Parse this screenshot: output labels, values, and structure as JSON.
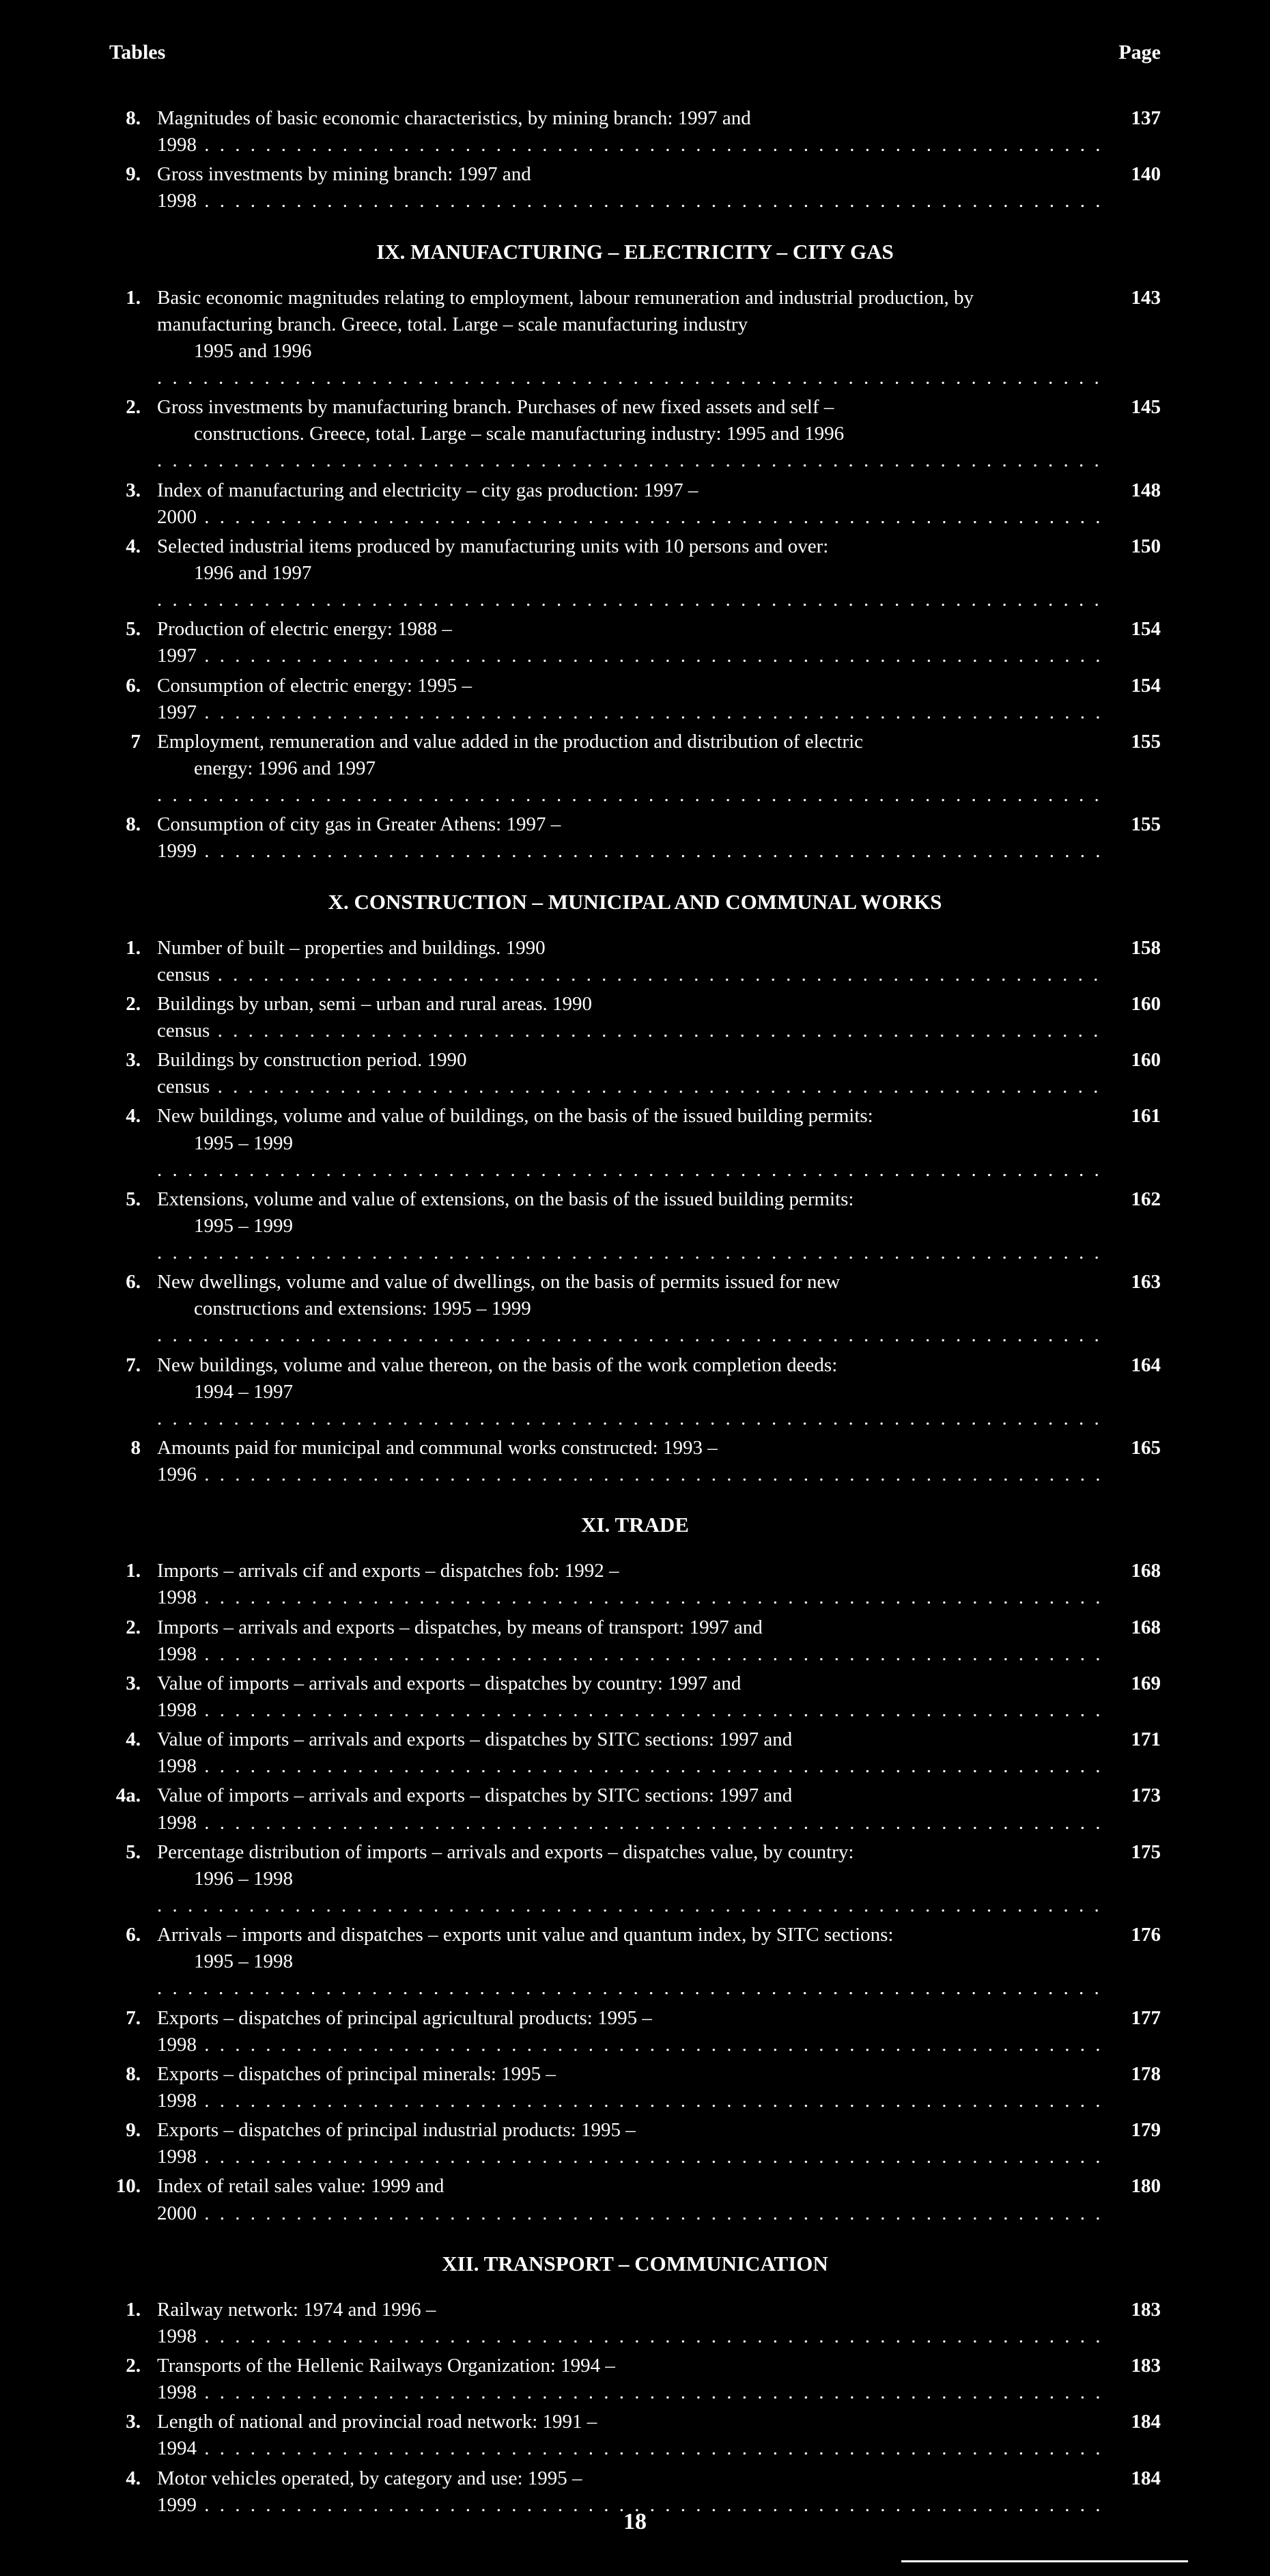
{
  "header": {
    "left": "Tables",
    "right": "Page"
  },
  "top_items": [
    {
      "n": "8.",
      "text": "Magnitudes of basic economic characteristics, by mining branch: 1997 and 1998",
      "page": "137"
    },
    {
      "n": "9.",
      "text": "Gross investments by mining branch: 1997 and 1998",
      "page": "140"
    }
  ],
  "sections": [
    {
      "title": "IX. MANUFACTURING – ELECTRICITY – CITY GAS",
      "items": [
        {
          "n": "1.",
          "text": "Basic economic magnitudes relating to employment, labour remuneration and industrial production, by manufacturing branch. Greece, total. Large – scale manufacturing industry ",
          "cont": "1995 and 1996",
          "page": "143"
        },
        {
          "n": "2.",
          "text": "Gross investments by manufacturing branch. Purchases of new fixed assets and self – ",
          "cont": "constructions. Greece, total. Large – scale manufacturing industry: 1995 and 1996",
          "page": "145"
        },
        {
          "n": "3.",
          "text": "Index of manufacturing and electricity – city gas production: 1997 – 2000",
          "page": "148"
        },
        {
          "n": "4.",
          "text": "Selected industrial items produced by manufacturing units with 10 persons and over: ",
          "cont": "1996 and 1997",
          "page": "150"
        },
        {
          "n": "5.",
          "text": "Production of electric energy: 1988 – 1997",
          "page": "154"
        },
        {
          "n": "6.",
          "text": "Consumption of electric energy: 1995 – 1997",
          "page": "154"
        },
        {
          "n": "7",
          "text": "Employment, remuneration and value added in the production and distribution of electric ",
          "cont": "energy: 1996 and 1997",
          "page": "155"
        },
        {
          "n": "8.",
          "text": "Consumption of city gas in Greater Athens: 1997 – 1999",
          "page": "155"
        }
      ]
    },
    {
      "title": "X. CONSTRUCTION – MUNICIPAL AND COMMUNAL WORKS",
      "items": [
        {
          "n": "1.",
          "text": "Number of built – properties and buildings. 1990 census",
          "page": "158"
        },
        {
          "n": "2.",
          "text": "Buildings by urban, semi – urban and rural areas. 1990 census",
          "page": "160"
        },
        {
          "n": "3.",
          "text": "Buildings by construction period. 1990 census",
          "page": "160"
        },
        {
          "n": "4.",
          "text": "New buildings, volume and value of buildings, on the basis of the issued building permits: ",
          "cont": "1995 – 1999",
          "page": "161"
        },
        {
          "n": "5.",
          "text": "Extensions, volume and value of extensions, on the basis of the issued building permits: ",
          "cont": "1995 – 1999",
          "page": "162"
        },
        {
          "n": "6.",
          "text": "New dwellings, volume and value of dwellings, on the basis of permits issued for new ",
          "cont": "constructions and extensions: 1995 – 1999",
          "page": "163"
        },
        {
          "n": "7.",
          "text": "New buildings, volume and value thereon, on the basis of the work completion deeds: ",
          "cont": "1994 – 1997",
          "page": "164"
        },
        {
          "n": "8",
          "text": "Amounts paid for municipal and communal works constructed: 1993 – 1996",
          "page": "165"
        }
      ]
    },
    {
      "title": "XI. TRADE",
      "items": [
        {
          "n": "1.",
          "text": "Imports – arrivals cif and exports – dispatches fob: 1992 – 1998",
          "page": "168"
        },
        {
          "n": "2.",
          "text": "Imports – arrivals and exports – dispatches, by means of transport: 1997 and 1998",
          "page": "168"
        },
        {
          "n": "3.",
          "text": "Value of imports – arrivals and exports – dispatches by country: 1997 and 1998",
          "page": "169"
        },
        {
          "n": "4.",
          "text": "Value of imports – arrivals and exports – dispatches by SITC sections: 1997 and 1998",
          "page": "171"
        },
        {
          "n": "4a.",
          "text": "Value of imports – arrivals and exports – dispatches by SITC sections: 1997 and 1998",
          "page": "173"
        },
        {
          "n": "5.",
          "text": "Percentage distribution of imports – arrivals and exports – dispatches value, by country: ",
          "cont": "1996 – 1998",
          "page": "175"
        },
        {
          "n": "6.",
          "text": "Arrivals – imports and dispatches – exports unit value and quantum index, by SITC sections: ",
          "cont": "1995 – 1998",
          "page": "176"
        },
        {
          "n": "7.",
          "text": "Exports – dispatches of principal agricultural products: 1995 – 1998",
          "page": "177"
        },
        {
          "n": "8.",
          "text": "Exports – dispatches of principal minerals: 1995 – 1998",
          "page": "178"
        },
        {
          "n": "9.",
          "text": "Exports – dispatches of principal industrial products: 1995 – 1998",
          "page": "179"
        },
        {
          "n": "10.",
          "text": "Index of retail sales value: 1999 and 2000",
          "page": "180"
        }
      ]
    },
    {
      "title": "XII. TRANSPORT – COMMUNICATION",
      "items": [
        {
          "n": "1.",
          "text": "Railway network: 1974 and 1996 – 1998",
          "page": "183"
        },
        {
          "n": "2.",
          "text": "Transports of the Hellenic Railways Organization: 1994 – 1998",
          "page": "183"
        },
        {
          "n": "3.",
          "text": "Length of national and provincial road network: 1991 – 1994",
          "page": "184"
        },
        {
          "n": "4.",
          "text": "Motor vehicles operated, by category and use: 1995 – 1999",
          "page": "184"
        }
      ]
    }
  ],
  "page_number": "18"
}
